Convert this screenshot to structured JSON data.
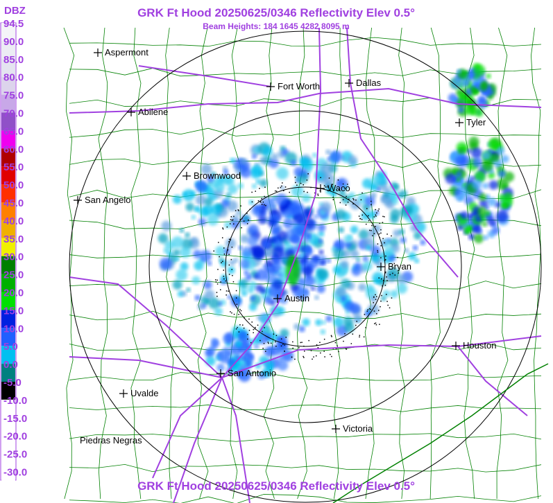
{
  "header": {
    "title": "GRK Ft Hood 20250625/0346 Reflectivity Elev 0.5°",
    "subtitle": "Beam Heights: 184 1645 4282 8095 m",
    "footer": "GRK Ft Hood 20250625/0346 Reflectivity Elev 0.5°"
  },
  "legend": {
    "unit": "DBZ",
    "entries": [
      {
        "label": "94.5",
        "color": "#f4f4f8"
      },
      {
        "label": "90.0",
        "color": "#ececf4"
      },
      {
        "label": "85.0",
        "color": "#e4e4f0"
      },
      {
        "label": "80.0",
        "color": "#dcd4ec"
      },
      {
        "label": "75.0",
        "color": "#c8a8e8"
      },
      {
        "label": "70.0",
        "color": "#9050c8"
      },
      {
        "label": "65.0",
        "color": "#f000f0"
      },
      {
        "label": "60.0",
        "color": "#b00000"
      },
      {
        "label": "55.0",
        "color": "#e00000"
      },
      {
        "label": "50.0",
        "color": "#ff3000"
      },
      {
        "label": "45.0",
        "color": "#ff8000"
      },
      {
        "label": "40.0",
        "color": "#f0b000"
      },
      {
        "label": "35.0",
        "color": "#f0f000"
      },
      {
        "label": "30.0",
        "color": "#008000"
      },
      {
        "label": "25.0",
        "color": "#00b000"
      },
      {
        "label": "20.0",
        "color": "#00e000"
      },
      {
        "label": "15.0",
        "color": "#0020e0"
      },
      {
        "label": "10.0",
        "color": "#2060ff"
      },
      {
        "label": "5.0",
        "color": "#00c0f0"
      },
      {
        "label": "0.0",
        "color": "#008080"
      },
      {
        "label": "-5.0",
        "color": "#000000"
      },
      {
        "label": "-10.0",
        "color": "#ffffff"
      },
      {
        "label": "-15.0",
        "color": "#ffffff"
      },
      {
        "label": "-20.0",
        "color": "#ffffff"
      },
      {
        "label": "-25.0",
        "color": "#ffffff"
      },
      {
        "label": "-30.0",
        "color": "#ffffff"
      }
    ]
  },
  "cities": [
    "Aspermont",
    "Fort Worth",
    "Dallas",
    "Abilene",
    "Tyler",
    "Brownwood",
    "Waco",
    "San Angelo",
    "Bryan",
    "Austin",
    "Houston",
    "San Antonio",
    "Uvalde",
    "Victoria",
    "Piedras Negras"
  ]
}
